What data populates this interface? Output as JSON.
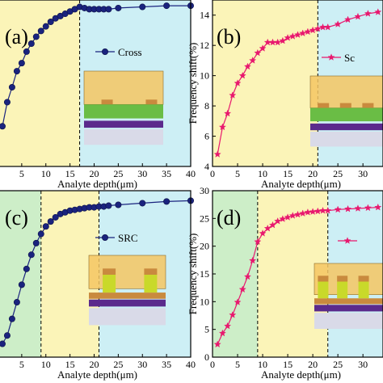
{
  "figure": {
    "panels": [
      {
        "label": "(a)",
        "legend": "Cross"
      },
      {
        "label": "(b)",
        "legend": "Sc"
      },
      {
        "label": "(c)",
        "legend": "SRC"
      },
      {
        "label": "(d)",
        "legend": ""
      }
    ]
  },
  "chart_data": [
    {
      "type": "line",
      "panel": "(a)",
      "xlabel": "Analyte depth(μm)",
      "ylabel": "",
      "xticks": [
        5,
        10,
        15,
        20,
        25,
        30,
        35,
        40
      ],
      "xlim": [
        0,
        40
      ],
      "ylim": [
        0,
        14.5
      ],
      "region_boundaries": [
        17
      ],
      "region_colors": [
        "#fbf4b8",
        "#cdeff5"
      ],
      "series": [
        {
          "name": "Cross",
          "color": "#1a237e",
          "marker": "circle",
          "x": [
            1,
            2,
            3,
            4,
            5,
            6,
            7,
            8,
            9,
            10,
            11,
            12,
            13,
            14,
            15,
            16,
            17,
            18,
            19,
            20,
            21,
            22,
            23,
            25,
            30,
            35,
            40
          ],
          "y": [
            3.5,
            5.6,
            6.9,
            8.3,
            9.0,
            10.0,
            10.7,
            11.3,
            11.8,
            12.2,
            12.6,
            12.9,
            13.1,
            13.3,
            13.5,
            13.7,
            13.9,
            13.8,
            13.7,
            13.7,
            13.7,
            13.7,
            13.7,
            13.8,
            13.9,
            14.0,
            14.0
          ]
        }
      ]
    },
    {
      "type": "line",
      "panel": "(b)",
      "xlabel": "Analyte depth(μm)",
      "ylabel": "Frequency shift(%)",
      "xticks": [
        0,
        5,
        10,
        15,
        20,
        25,
        30
      ],
      "yticks": [
        4,
        6,
        8,
        10,
        12,
        14
      ],
      "xlim": [
        0,
        34
      ],
      "ylim": [
        4,
        15
      ],
      "region_boundaries": [
        21
      ],
      "region_colors": [
        "#fbf4b8",
        "#cdeff5"
      ],
      "series": [
        {
          "name": "Sc",
          "color": "#e8186e",
          "marker": "star",
          "x": [
            1,
            2,
            3,
            4,
            5,
            6,
            7,
            8,
            9,
            10,
            11,
            12,
            13,
            14,
            15,
            16,
            17,
            18,
            19,
            20,
            21,
            22,
            23,
            25,
            27,
            29,
            31,
            33
          ],
          "y": [
            4.8,
            6.6,
            7.5,
            8.7,
            9.5,
            10.0,
            10.6,
            11.0,
            11.5,
            11.8,
            12.2,
            12.2,
            12.2,
            12.3,
            12.5,
            12.6,
            12.7,
            12.8,
            12.9,
            13.0,
            13.1,
            13.2,
            13.2,
            13.4,
            13.7,
            13.9,
            14.1,
            14.2
          ]
        }
      ]
    },
    {
      "type": "line",
      "panel": "(c)",
      "xlabel": "Analyte depth(μm)",
      "ylabel": "",
      "xticks": [
        5,
        10,
        15,
        20,
        25,
        30,
        35,
        40
      ],
      "xlim": [
        0,
        40
      ],
      "ylim": [
        0,
        20
      ],
      "region_boundaries": [
        9,
        21
      ],
      "region_colors": [
        "#cdeec8",
        "#fbf4b8",
        "#cdeff5"
      ],
      "series": [
        {
          "name": "SRC",
          "color": "#1a237e",
          "marker": "circle",
          "x": [
            1,
            2,
            3,
            4,
            5,
            6,
            7,
            8,
            9,
            10,
            11,
            12,
            13,
            14,
            15,
            16,
            17,
            18,
            19,
            20,
            21,
            22,
            23,
            25,
            30,
            35,
            40
          ],
          "y": [
            1.6,
            2.6,
            4.6,
            6.6,
            8.7,
            10.6,
            12.3,
            13.7,
            14.8,
            15.7,
            16.3,
            16.8,
            17.2,
            17.4,
            17.6,
            17.7,
            17.8,
            17.9,
            18.0,
            18.0,
            18.1,
            18.1,
            18.2,
            18.3,
            18.5,
            18.7,
            18.8
          ]
        }
      ]
    },
    {
      "type": "line",
      "panel": "(d)",
      "xlabel": "Analyte depth(μm)",
      "ylabel": "Frequency shift(%)",
      "xticks": [
        0,
        5,
        10,
        15,
        20,
        25,
        30
      ],
      "yticks": [
        0,
        5,
        10,
        15,
        20,
        25,
        30
      ],
      "xlim": [
        0,
        34
      ],
      "ylim": [
        0,
        30
      ],
      "region_boundaries": [
        9,
        23
      ],
      "region_colors": [
        "#cdeec8",
        "#fbf4b8",
        "#cdeff5"
      ],
      "series": [
        {
          "name": "",
          "color": "#e8186e",
          "marker": "star",
          "x": [
            1,
            2,
            3,
            4,
            5,
            6,
            7,
            8,
            9,
            10,
            11,
            12,
            13,
            14,
            15,
            16,
            17,
            18,
            19,
            20,
            21,
            22,
            23,
            25,
            27,
            29,
            31,
            33
          ],
          "y": [
            2.3,
            4.3,
            5.6,
            7.6,
            9.9,
            12.2,
            14.5,
            17.4,
            20.8,
            22.3,
            23.2,
            23.8,
            24.5,
            24.9,
            25.2,
            25.5,
            25.7,
            25.9,
            26.1,
            26.2,
            26.3,
            26.4,
            26.4,
            26.6,
            26.7,
            26.8,
            26.9,
            27.0
          ]
        }
      ]
    }
  ]
}
